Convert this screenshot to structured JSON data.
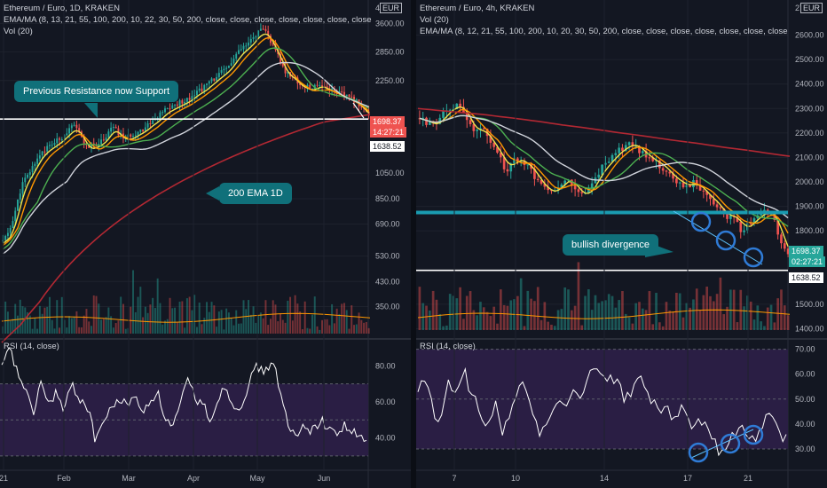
{
  "left": {
    "title": "Ethereum / Euro, 1D, KRAKEN",
    "indicators": "EMA/MA (8, 13, 21, 55, 100, 200, 10, 22, 30, 50, 200, close, close, close, close, close, close, close, close, c",
    "vol": "Vol (20)",
    "rsi_label": "RSI (14, close)",
    "currency": "EUR",
    "price_ticks": [
      "3600.00",
      "2850.00",
      "2250.00",
      "1050.00",
      "850.00",
      "690.00",
      "530.00",
      "430.00",
      "350.00"
    ],
    "rsi_ticks": [
      "80.00",
      "60.00",
      "40.00"
    ],
    "time_ticks": [
      "21",
      "Feb",
      "Mar",
      "Apr",
      "May",
      "Jun"
    ],
    "last_price": "1698.37",
    "countdown": "14:27:21",
    "support_price": "1638.52",
    "callout_support": "Previous Resistance now Support",
    "callout_ema": "200 EMA 1D",
    "top_tick_partial": "4"
  },
  "right": {
    "title": "Ethereum / Euro, 4h, KRAKEN",
    "vol": "Vol (20)",
    "indicators": "EMA/MA (8, 12, 21, 55, 100, 200, 10, 20, 30, 50, 200, close, close, close, close, close, close, close, close, c",
    "rsi_label": "RSI (14, close)",
    "currency": "EUR",
    "price_ticks": [
      "2600.00",
      "2500.00",
      "2400.00",
      "2300.00",
      "2200.00",
      "2100.00",
      "2000.00",
      "1900.00",
      "1800.00",
      "1500.00",
      "1400.00"
    ],
    "rsi_ticks": [
      "70.00",
      "60.00",
      "50.00",
      "40.00",
      "30.00"
    ],
    "time_ticks": [
      "7",
      "10",
      "14",
      "17",
      "21"
    ],
    "last_price": "1698.37",
    "countdown": "02:27:21",
    "support_price": "1638.52",
    "callout_divergence": "bullish divergence",
    "top_tick_partial": "27"
  },
  "colors": {
    "background": "#131722",
    "up": "#26a69a",
    "down": "#ef5350",
    "ema_yellow": "#f2e34c",
    "ema_orange": "#ff9800",
    "ema_green": "#4caf50",
    "ema_white": "#d1d4dc",
    "ema_red": "#b22833",
    "callout": "#10707a",
    "rsi_line": "#ffffff",
    "rsi_band": "#2a1e44",
    "circle": "#2f7bd6"
  },
  "chart_data": [
    {
      "type": "line",
      "title": "Ethereum / Euro, 1D, KRAKEN",
      "x_labels": [
        "21",
        "Feb",
        "Mar",
        "Apr",
        "May",
        "Jun"
      ],
      "close": [
        600,
        650,
        780,
        960,
        1040,
        1150,
        1250,
        1300,
        1350,
        1400,
        1480,
        1550,
        1450,
        1300,
        1320,
        1350,
        1420,
        1550,
        1450,
        1400,
        1430,
        1480,
        1520,
        1600,
        1650,
        1750,
        1800,
        1850,
        1900,
        1950,
        2050,
        2100,
        2200,
        2300,
        2400,
        2500,
        2700,
        2900,
        3000,
        3200,
        3400,
        3350,
        3000,
        2700,
        2400,
        2350,
        2200,
        2150,
        2100,
        2200,
        2150,
        2100,
        2050,
        2000,
        1950,
        1900,
        1800,
        1698
      ],
      "ema200": [
        260,
        280,
        300,
        330,
        360,
        400,
        440,
        480,
        520,
        560,
        600,
        640,
        680,
        720,
        760,
        800,
        840,
        880,
        920,
        960,
        1000,
        1040,
        1080,
        1120,
        1160,
        1200,
        1240,
        1280,
        1320,
        1360,
        1400,
        1440,
        1480,
        1520,
        1560,
        1600,
        1620,
        1640,
        1660,
        1680,
        1700
      ],
      "ylim": [
        280,
        4000
      ],
      "yscale": "log",
      "support_level": 1638.52,
      "rsi": [
        78,
        90,
        76,
        68,
        52,
        72,
        58,
        66,
        54,
        70,
        62,
        58,
        40,
        48,
        55,
        62,
        58,
        64,
        54,
        60,
        66,
        52,
        45,
        58,
        72,
        62,
        58,
        50,
        64,
        68,
        56,
        60,
        72,
        80,
        76,
        84,
        62,
        45,
        40,
        48,
        44,
        50,
        46,
        42,
        47,
        44,
        40,
        38
      ],
      "rsi_ylim": [
        27,
        92
      ]
    },
    {
      "type": "line",
      "title": "Ethereum / Euro, 4h, KRAKEN",
      "x_labels": [
        "7",
        "10",
        "14",
        "17",
        "21"
      ],
      "close": [
        2260,
        2240,
        2230,
        2280,
        2300,
        2320,
        2250,
        2200,
        2220,
        2150,
        2120,
        2040,
        2100,
        2080,
        2060,
        2000,
        1970,
        1950,
        2000,
        2010,
        1960,
        1940,
        1990,
        2050,
        2080,
        2120,
        2140,
        2160,
        2130,
        2100,
        2080,
        2060,
        2020,
        2000,
        1980,
        2000,
        1960,
        1930,
        1900,
        1850,
        1870,
        1800,
        1830,
        1860,
        1880,
        1870,
        1750,
        1698
      ],
      "ema200": [
        2300,
        2295,
        2290,
        2285,
        2280,
        2275,
        2268,
        2262,
        2255,
        2248,
        2240,
        2232,
        2225,
        2218,
        2210,
        2202,
        2195,
        2188,
        2180,
        2172,
        2165,
        2158,
        2150,
        2142,
        2135,
        2128,
        2120,
        2112,
        2105
      ],
      "ylim": [
        1380,
        2700
      ],
      "support_level": 1638.52,
      "horizontal_level": 1875,
      "rsi": [
        52,
        60,
        44,
        40,
        56,
        54,
        62,
        52,
        44,
        40,
        48,
        36,
        46,
        52,
        57,
        42,
        34,
        44,
        48,
        46,
        54,
        50,
        58,
        60,
        62,
        58,
        55,
        50,
        54,
        58,
        52,
        46,
        48,
        42,
        44,
        46,
        38,
        42,
        36,
        30,
        28,
        34,
        38,
        34,
        32,
        40,
        44,
        36,
        34
      ],
      "rsi_ylim": [
        25,
        72
      ]
    }
  ]
}
